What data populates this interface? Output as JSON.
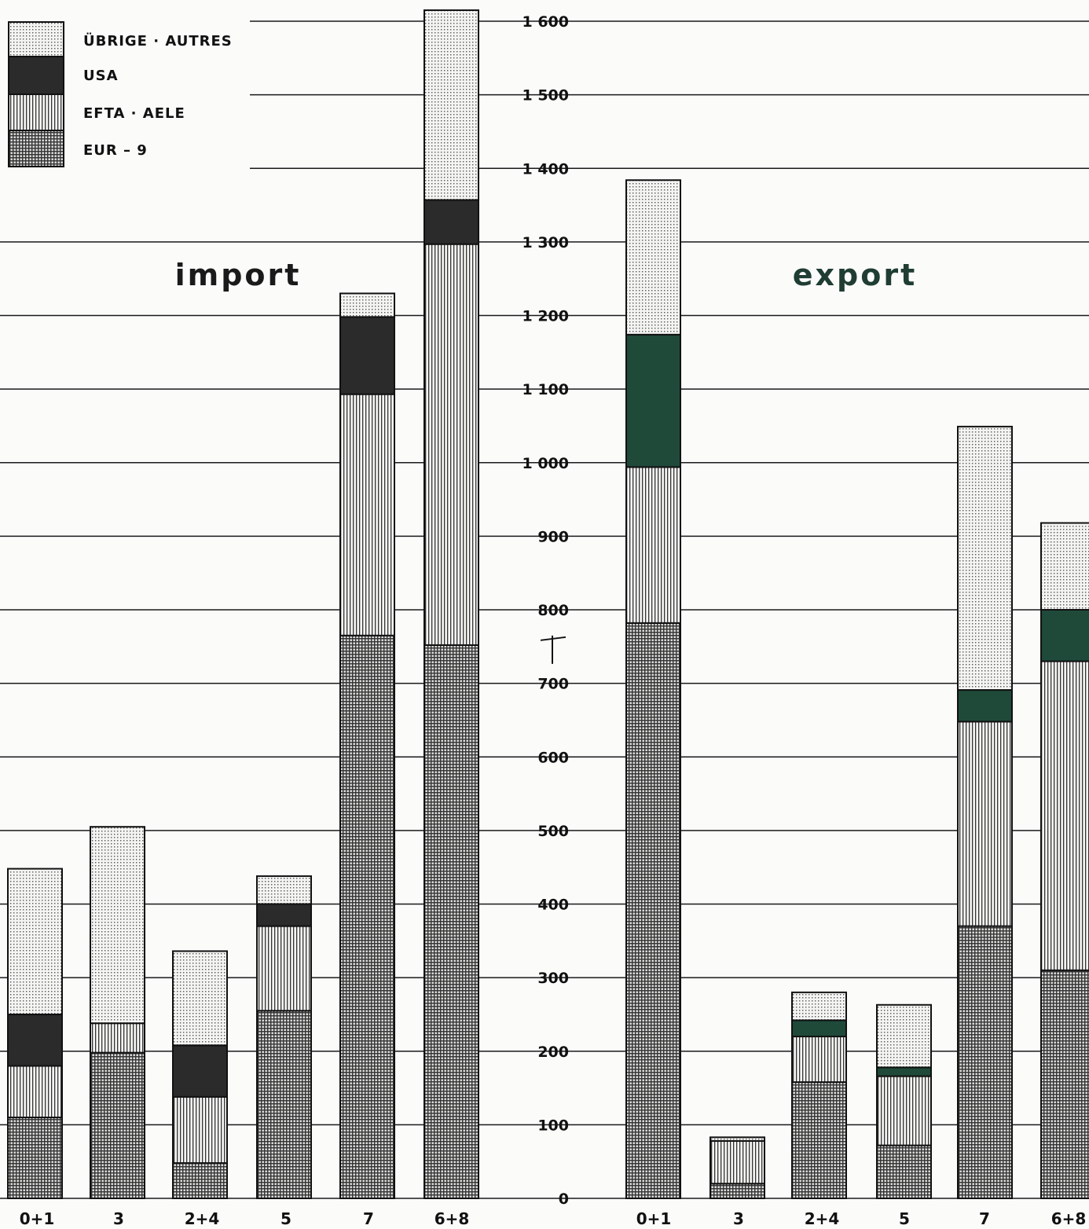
{
  "chart_data": {
    "type": "bar",
    "stacked": true,
    "ylim": [
      0,
      1600
    ],
    "yticks": [
      "0",
      "100",
      "200",
      "300",
      "400",
      "500",
      "600",
      "700",
      "800",
      "900",
      "1 000",
      "1 100",
      "1 200",
      "1 300",
      "1 400",
      "1 500",
      "1 600"
    ],
    "y_axis_mark": "T",
    "grid": true,
    "legend_position": "top-left",
    "legend": [
      {
        "name": "ÜBRIGE · AUTRES",
        "pattern": "dots",
        "color": "#bdbdbd"
      },
      {
        "name": "USA",
        "pattern": "solid",
        "color": "#2b2b2b"
      },
      {
        "name": "EFTA · AELE",
        "pattern": "vertical-lines",
        "color": "#9a9a9a"
      },
      {
        "name": "EUR – 9",
        "pattern": "crosshatch",
        "color": "#6a6a6a"
      }
    ],
    "panels": [
      {
        "title": "import",
        "title_color": "#1a1a1a",
        "usa_color": "#2b2b2b",
        "categories": [
          "0+1",
          "3",
          "2+4",
          "5",
          "7",
          "6+8"
        ],
        "series": [
          {
            "name": "EUR – 9",
            "values": [
              110,
              198,
              48,
              255,
              765,
              752
            ]
          },
          {
            "name": "EFTA · AELE",
            "values": [
              70,
              40,
              90,
              115,
              328,
              545
            ]
          },
          {
            "name": "USA",
            "values": [
              70,
              0,
              70,
              30,
              105,
              60
            ]
          },
          {
            "name": "ÜBRIGE · AUTRES",
            "values": [
              198,
              267,
              128,
              38,
              32,
              258
            ]
          }
        ]
      },
      {
        "title": "export",
        "title_color": "#1f3d33",
        "usa_color": "#1f4a3a",
        "categories": [
          "0+1",
          "3",
          "2+4",
          "5",
          "7",
          "6+8"
        ],
        "series": [
          {
            "name": "EUR – 9",
            "values": [
              782,
              20,
              158,
              72,
              370,
              310
            ]
          },
          {
            "name": "EFTA · AELE",
            "values": [
              212,
              58,
              62,
              94,
              278,
              420
            ]
          },
          {
            "name": "USA",
            "values": [
              180,
              0,
              22,
              12,
              43,
              70
            ]
          },
          {
            "name": "ÜBRIGE · AUTRES",
            "values": [
              210,
              5,
              38,
              85,
              358,
              118
            ]
          }
        ]
      }
    ]
  }
}
